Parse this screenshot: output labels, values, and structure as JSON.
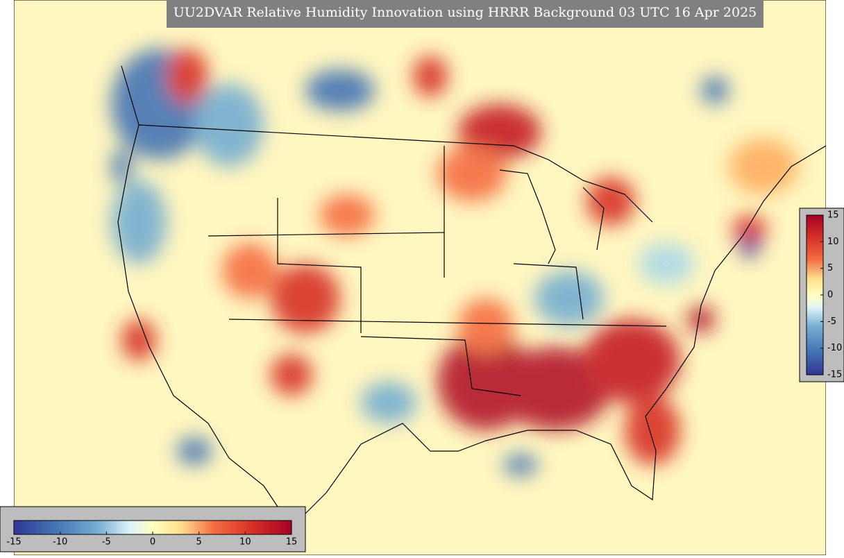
{
  "title": "UU2DVAR Relative Humidity Innovation using HRRR Background 03 UTC 16 Apr 2025",
  "colorbar_right": {
    "range": [
      -15,
      15
    ],
    "ticks": [
      15,
      10,
      5,
      0,
      -5,
      -10,
      -15
    ]
  },
  "colorbar_bottom": {
    "range": [
      -15,
      15
    ],
    "ticks": [
      -15,
      -10,
      -5,
      0,
      5,
      10,
      15
    ]
  }
}
